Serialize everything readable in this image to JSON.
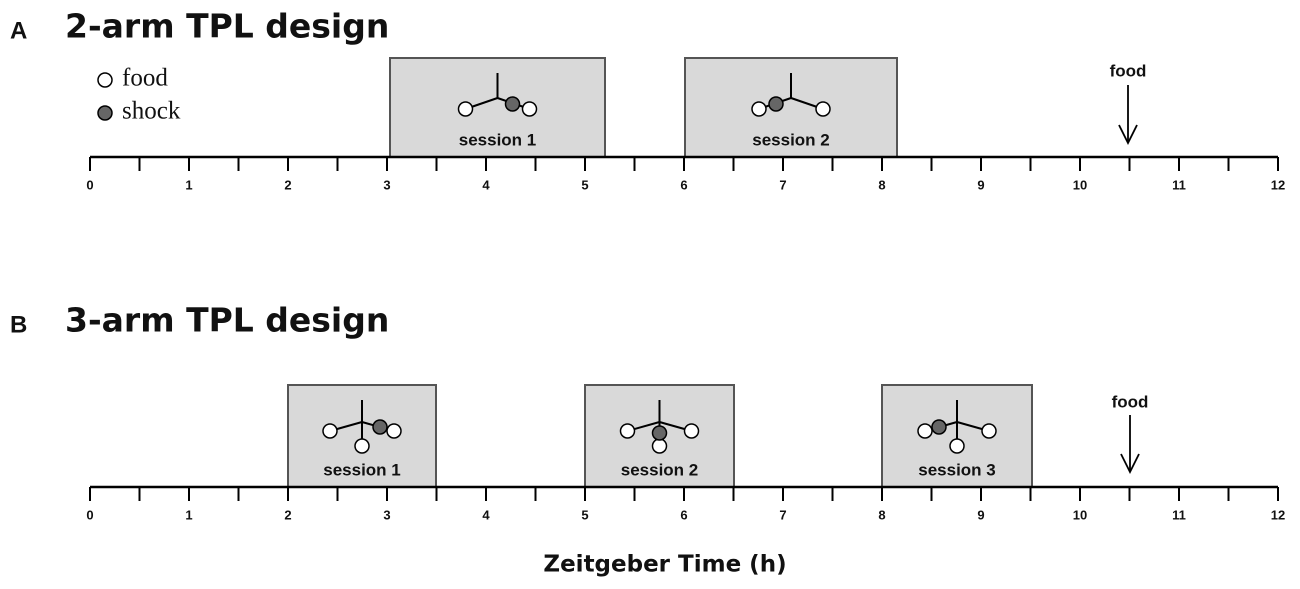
{
  "legend": [
    "food",
    "shock"
  ],
  "panels": [
    {
      "letter": "A",
      "title": "2-arm TPL design",
      "sessions": [
        "session 1",
        "session 2"
      ],
      "marker": "food",
      "ticks": [
        0,
        1,
        2,
        3,
        4,
        5,
        6,
        7,
        8,
        9,
        10,
        11,
        12
      ]
    },
    {
      "letter": "B",
      "title": "3-arm TPL design",
      "sessions": [
        "session 1",
        "session 2",
        "session 3"
      ],
      "marker": "food",
      "ticks": [
        0,
        1,
        2,
        3,
        4,
        5,
        6,
        7,
        8,
        9,
        10,
        11,
        12
      ]
    }
  ],
  "axis_label": "Zeitgeber Time (h)"
}
